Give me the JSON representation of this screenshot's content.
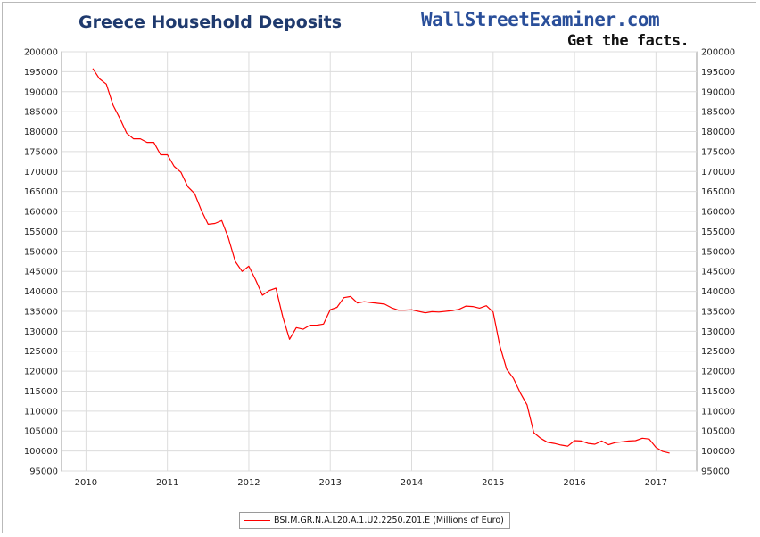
{
  "header": {
    "title": "Greece Household Deposits",
    "brand": "WallStreetExaminer.com",
    "tagline": "Get the facts."
  },
  "chart_data": {
    "type": "line",
    "title": "Greece Household Deposits",
    "xlabel": "",
    "ylabel": "",
    "xlim": [
      2009.7,
      2017.5
    ],
    "ylim": [
      95000,
      200000
    ],
    "x_ticks": [
      "2010",
      "2011",
      "2012",
      "2013",
      "2014",
      "2015",
      "2016",
      "2017"
    ],
    "y_ticks": [
      "200000",
      "195000",
      "190000",
      "185000",
      "180000",
      "175000",
      "170000",
      "165000",
      "160000",
      "155000",
      "150000",
      "145000",
      "140000",
      "135000",
      "130000",
      "125000",
      "120000",
      "115000",
      "110000",
      "105000",
      "100000",
      "95000"
    ],
    "grid": true,
    "legend_position": "bottom",
    "line_color": "#ff0000",
    "series": [
      {
        "name": "BSI.M.GR.N.A.L20.A.1.U2.2250.Z01.E (Millions of Euro)",
        "x": [
          2010.083,
          2010.167,
          2010.25,
          2010.333,
          2010.417,
          2010.5,
          2010.583,
          2010.667,
          2010.75,
          2010.833,
          2010.917,
          2011.0,
          2011.083,
          2011.167,
          2011.25,
          2011.333,
          2011.417,
          2011.5,
          2011.583,
          2011.667,
          2011.75,
          2011.833,
          2011.917,
          2012.0,
          2012.083,
          2012.167,
          2012.25,
          2012.333,
          2012.417,
          2012.5,
          2012.583,
          2012.667,
          2012.75,
          2012.833,
          2012.917,
          2013.0,
          2013.083,
          2013.167,
          2013.25,
          2013.333,
          2013.417,
          2013.5,
          2013.583,
          2013.667,
          2013.75,
          2013.833,
          2013.917,
          2014.0,
          2014.083,
          2014.167,
          2014.25,
          2014.333,
          2014.417,
          2014.5,
          2014.583,
          2014.667,
          2014.75,
          2014.833,
          2014.917,
          2015.0,
          2015.083,
          2015.167,
          2015.25,
          2015.333,
          2015.417,
          2015.5,
          2015.583,
          2015.667,
          2015.75,
          2015.833,
          2015.917,
          2016.0,
          2016.083,
          2016.167,
          2016.25,
          2016.333,
          2016.417,
          2016.5,
          2016.583,
          2016.667,
          2016.75,
          2016.833,
          2016.917,
          2017.0,
          2017.083,
          2017.167
        ],
        "values": [
          195800,
          193200,
          191900,
          186600,
          183300,
          179600,
          178200,
          178200,
          177300,
          177300,
          174200,
          174200,
          171300,
          169800,
          166200,
          164500,
          160300,
          156800,
          157000,
          157700,
          153300,
          147500,
          145000,
          146300,
          142900,
          139000,
          140200,
          140800,
          133600,
          128000,
          130900,
          130500,
          131500,
          131500,
          131800,
          135400,
          136000,
          138400,
          138700,
          137100,
          137400,
          137200,
          137000,
          136800,
          135900,
          135300,
          135300,
          135400,
          135000,
          134600,
          134900,
          134800,
          135000,
          135200,
          135500,
          136300,
          136200,
          135800,
          136400,
          134800,
          126300,
          120500,
          118200,
          114600,
          111500,
          104600,
          103200,
          102200,
          101900,
          101500,
          101200,
          102600,
          102500,
          101900,
          101700,
          102500,
          101600,
          102100,
          102300,
          102500,
          102600,
          103200,
          103000,
          100900,
          99900,
          99500
        ]
      }
    ]
  }
}
